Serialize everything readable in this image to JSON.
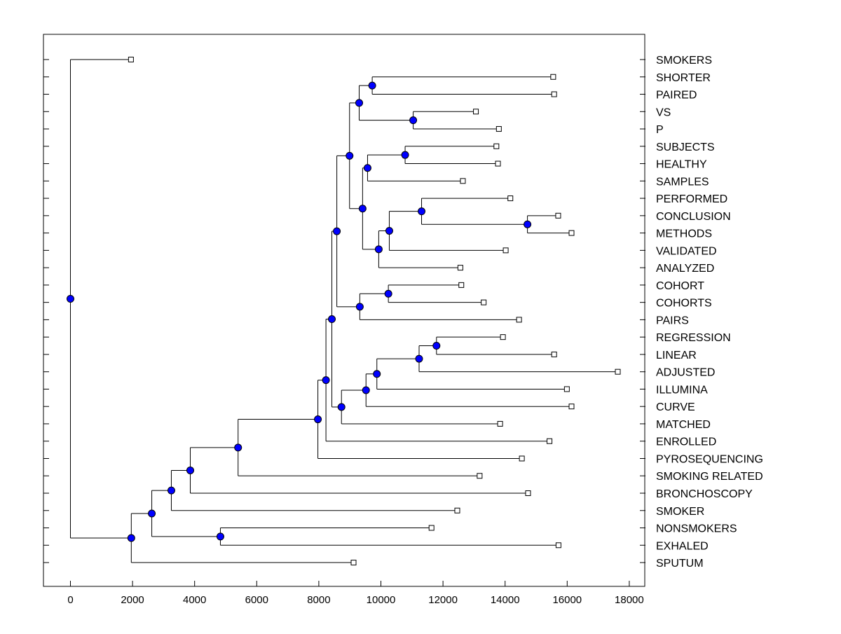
{
  "chart_data": {
    "type": "dendrogram",
    "title": "",
    "xlabel": "",
    "ylabel": "",
    "xlim": [
      -900,
      18500
    ],
    "x_ticks": [
      0,
      2000,
      4000,
      6000,
      8000,
      10000,
      12000,
      14000,
      16000,
      18000
    ],
    "grid": false,
    "node_color": "#0000ff",
    "line_color": "#000000",
    "leaves": [
      {
        "label": "SMOKERS",
        "x": 1950
      },
      {
        "label": "SHORTER",
        "x": 15550
      },
      {
        "label": "PAIRED",
        "x": 15580
      },
      {
        "label": "VS",
        "x": 13060
      },
      {
        "label": "P",
        "x": 13800
      },
      {
        "label": "SUBJECTS",
        "x": 13720
      },
      {
        "label": "HEALTHY",
        "x": 13770
      },
      {
        "label": "SAMPLES",
        "x": 12640
      },
      {
        "label": "PERFORMED",
        "x": 14170
      },
      {
        "label": "CONCLUSION",
        "x": 15710
      },
      {
        "label": "METHODS",
        "x": 16140
      },
      {
        "label": "VALIDATED",
        "x": 14020
      },
      {
        "label": "ANALYZED",
        "x": 12560
      },
      {
        "label": "COHORT",
        "x": 12590
      },
      {
        "label": "COHORTS",
        "x": 13310
      },
      {
        "label": "PAIRS",
        "x": 14450
      },
      {
        "label": "REGRESSION",
        "x": 13930
      },
      {
        "label": "LINEAR",
        "x": 15580
      },
      {
        "label": "ADJUSTED",
        "x": 17630
      },
      {
        "label": "ILLUMINA",
        "x": 15990
      },
      {
        "label": "CURVE",
        "x": 16140
      },
      {
        "label": "MATCHED",
        "x": 13840
      },
      {
        "label": "ENROLLED",
        "x": 15430
      },
      {
        "label": "PYROSEQUENCING",
        "x": 14540
      },
      {
        "label": "SMOKING RELATED",
        "x": 13180
      },
      {
        "label": "BRONCHOSCOPY",
        "x": 14740
      },
      {
        "label": "SMOKER",
        "x": 12460
      },
      {
        "label": "NONSMOKERS",
        "x": 11630
      },
      {
        "label": "EXHALED",
        "x": 15720
      },
      {
        "label": "SPUTUM",
        "x": 9120
      }
    ],
    "merges": [
      {
        "id": "m1",
        "x": 9720,
        "children": [
          "SHORTER",
          "PAIRED"
        ]
      },
      {
        "id": "m2",
        "x": 11040,
        "children": [
          "VS",
          "P"
        ]
      },
      {
        "id": "m3",
        "x": 9300,
        "children": [
          "m1",
          "m2"
        ]
      },
      {
        "id": "m4",
        "x": 10780,
        "children": [
          "SUBJECTS",
          "HEALTHY"
        ]
      },
      {
        "id": "m5",
        "x": 9570,
        "children": [
          "m4",
          "SAMPLES"
        ]
      },
      {
        "id": "m6",
        "x": 14720,
        "children": [
          "CONCLUSION",
          "METHODS"
        ]
      },
      {
        "id": "m7",
        "x": 11310,
        "children": [
          "PERFORMED",
          "m6"
        ]
      },
      {
        "id": "m8",
        "x": 10270,
        "children": [
          "m7",
          "VALIDATED"
        ]
      },
      {
        "id": "m9",
        "x": 9930,
        "children": [
          "m8",
          "ANALYZED"
        ]
      },
      {
        "id": "m10",
        "x": 9410,
        "children": [
          "m5",
          "m9"
        ]
      },
      {
        "id": "m11",
        "x": 8990,
        "children": [
          "m3",
          "m10"
        ]
      },
      {
        "id": "m12",
        "x": 10240,
        "children": [
          "COHORT",
          "COHORTS"
        ]
      },
      {
        "id": "m13",
        "x": 9320,
        "children": [
          "m12",
          "PAIRS"
        ]
      },
      {
        "id": "m14",
        "x": 8580,
        "children": [
          "m11",
          "m13"
        ]
      },
      {
        "id": "m15",
        "x": 11790,
        "children": [
          "REGRESSION",
          "LINEAR"
        ]
      },
      {
        "id": "m16",
        "x": 11230,
        "children": [
          "m15",
          "ADJUSTED"
        ]
      },
      {
        "id": "m17",
        "x": 9870,
        "children": [
          "m16",
          "ILLUMINA"
        ]
      },
      {
        "id": "m18",
        "x": 9520,
        "children": [
          "m17",
          "CURVE"
        ]
      },
      {
        "id": "m19",
        "x": 8730,
        "children": [
          "m18",
          "MATCHED"
        ]
      },
      {
        "id": "m20",
        "x": 8420,
        "children": [
          "m14",
          "m19"
        ]
      },
      {
        "id": "m21",
        "x": 8230,
        "children": [
          "m20",
          "ENROLLED"
        ]
      },
      {
        "id": "m22",
        "x": 7970,
        "children": [
          "m21",
          "PYROSEQUENCING"
        ]
      },
      {
        "id": "m23",
        "x": 5400,
        "children": [
          "m22",
          "SMOKING RELATED"
        ]
      },
      {
        "id": "m24",
        "x": 3860,
        "children": [
          "m23",
          "BRONCHOSCOPY"
        ]
      },
      {
        "id": "m25",
        "x": 3250,
        "children": [
          "m24",
          "SMOKER"
        ]
      },
      {
        "id": "m26",
        "x": 4830,
        "children": [
          "NONSMOKERS",
          "EXHALED"
        ]
      },
      {
        "id": "m27",
        "x": 2620,
        "children": [
          "m25",
          "m26"
        ]
      },
      {
        "id": "m28",
        "x": 1960,
        "children": [
          "m27",
          "SPUTUM"
        ]
      },
      {
        "id": "m29",
        "x": 0,
        "children": [
          "SMOKERS",
          "m28"
        ]
      }
    ]
  }
}
